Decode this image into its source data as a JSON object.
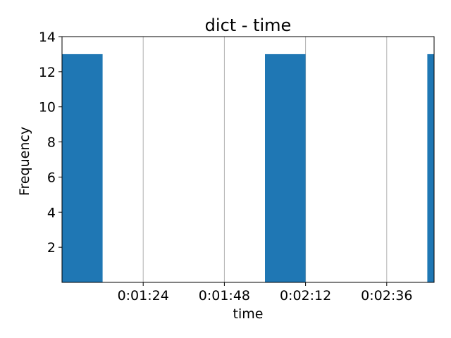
{
  "chart_data": {
    "type": "bar",
    "title": "dict - time",
    "xlabel": "time",
    "ylabel": "Frequency",
    "x_unit": "seconds",
    "xlim": [
      60,
      170
    ],
    "ylim": [
      0,
      14
    ],
    "y_ticks": [
      2,
      4,
      6,
      8,
      10,
      12,
      14
    ],
    "x_ticks": [
      {
        "value": 84,
        "label": "0:01:24"
      },
      {
        "value": 108,
        "label": "0:01:48"
      },
      {
        "value": 132,
        "label": "0:02:12"
      },
      {
        "value": 156,
        "label": "0:02:36"
      }
    ],
    "bins": [
      {
        "start": 60,
        "end": 72,
        "value": 13
      },
      {
        "start": 72,
        "end": 84,
        "value": 0
      },
      {
        "start": 84,
        "end": 96,
        "value": 0
      },
      {
        "start": 96,
        "end": 108,
        "value": 0
      },
      {
        "start": 108,
        "end": 120,
        "value": 0
      },
      {
        "start": 120,
        "end": 132,
        "value": 13
      },
      {
        "start": 132,
        "end": 144,
        "value": 0
      },
      {
        "start": 144,
        "end": 156,
        "value": 0
      },
      {
        "start": 156,
        "end": 168,
        "value": 0
      },
      {
        "start": 168,
        "end": 170,
        "value": 13
      }
    ],
    "grid": {
      "x": true,
      "y": false
    },
    "legend": "none",
    "bar_color": "#1f77b4",
    "grid_color": "#b0b0b0"
  }
}
